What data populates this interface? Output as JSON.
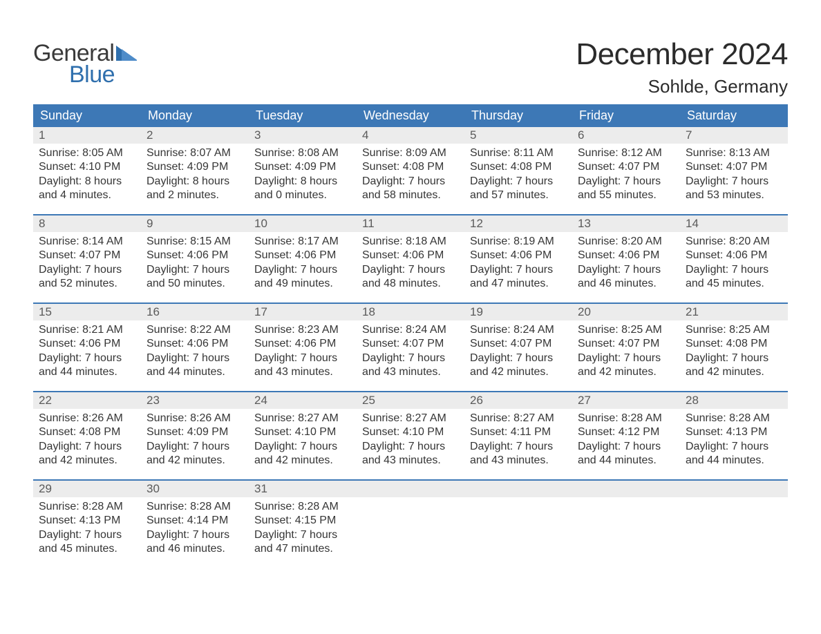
{
  "brand": {
    "word1": "General",
    "word2": "Blue",
    "text_color": "#3a3a3a",
    "accent_color": "#2f6fad"
  },
  "title": "December 2024",
  "location": "Sohlde, Germany",
  "colors": {
    "header_bg": "#3d78b6",
    "header_text": "#ffffff",
    "daynum_bg": "#ececec",
    "daynum_text": "#5a5a5a",
    "body_text": "#353535",
    "week_border": "#3d78b6",
    "page_bg": "#ffffff"
  },
  "typography": {
    "title_fontsize": 44,
    "location_fontsize": 26,
    "dow_fontsize": 18,
    "daynum_fontsize": 17,
    "body_fontsize": 16,
    "logo_fontsize": 34
  },
  "dow": [
    "Sunday",
    "Monday",
    "Tuesday",
    "Wednesday",
    "Thursday",
    "Friday",
    "Saturday"
  ],
  "weeks": [
    [
      {
        "n": "1",
        "sunrise": "8:05 AM",
        "sunset": "4:10 PM",
        "dl1": "Daylight: 8 hours",
        "dl2": "and 4 minutes."
      },
      {
        "n": "2",
        "sunrise": "8:07 AM",
        "sunset": "4:09 PM",
        "dl1": "Daylight: 8 hours",
        "dl2": "and 2 minutes."
      },
      {
        "n": "3",
        "sunrise": "8:08 AM",
        "sunset": "4:09 PM",
        "dl1": "Daylight: 8 hours",
        "dl2": "and 0 minutes."
      },
      {
        "n": "4",
        "sunrise": "8:09 AM",
        "sunset": "4:08 PM",
        "dl1": "Daylight: 7 hours",
        "dl2": "and 58 minutes."
      },
      {
        "n": "5",
        "sunrise": "8:11 AM",
        "sunset": "4:08 PM",
        "dl1": "Daylight: 7 hours",
        "dl2": "and 57 minutes."
      },
      {
        "n": "6",
        "sunrise": "8:12 AM",
        "sunset": "4:07 PM",
        "dl1": "Daylight: 7 hours",
        "dl2": "and 55 minutes."
      },
      {
        "n": "7",
        "sunrise": "8:13 AM",
        "sunset": "4:07 PM",
        "dl1": "Daylight: 7 hours",
        "dl2": "and 53 minutes."
      }
    ],
    [
      {
        "n": "8",
        "sunrise": "8:14 AM",
        "sunset": "4:07 PM",
        "dl1": "Daylight: 7 hours",
        "dl2": "and 52 minutes."
      },
      {
        "n": "9",
        "sunrise": "8:15 AM",
        "sunset": "4:06 PM",
        "dl1": "Daylight: 7 hours",
        "dl2": "and 50 minutes."
      },
      {
        "n": "10",
        "sunrise": "8:17 AM",
        "sunset": "4:06 PM",
        "dl1": "Daylight: 7 hours",
        "dl2": "and 49 minutes."
      },
      {
        "n": "11",
        "sunrise": "8:18 AM",
        "sunset": "4:06 PM",
        "dl1": "Daylight: 7 hours",
        "dl2": "and 48 minutes."
      },
      {
        "n": "12",
        "sunrise": "8:19 AM",
        "sunset": "4:06 PM",
        "dl1": "Daylight: 7 hours",
        "dl2": "and 47 minutes."
      },
      {
        "n": "13",
        "sunrise": "8:20 AM",
        "sunset": "4:06 PM",
        "dl1": "Daylight: 7 hours",
        "dl2": "and 46 minutes."
      },
      {
        "n": "14",
        "sunrise": "8:20 AM",
        "sunset": "4:06 PM",
        "dl1": "Daylight: 7 hours",
        "dl2": "and 45 minutes."
      }
    ],
    [
      {
        "n": "15",
        "sunrise": "8:21 AM",
        "sunset": "4:06 PM",
        "dl1": "Daylight: 7 hours",
        "dl2": "and 44 minutes."
      },
      {
        "n": "16",
        "sunrise": "8:22 AM",
        "sunset": "4:06 PM",
        "dl1": "Daylight: 7 hours",
        "dl2": "and 44 minutes."
      },
      {
        "n": "17",
        "sunrise": "8:23 AM",
        "sunset": "4:06 PM",
        "dl1": "Daylight: 7 hours",
        "dl2": "and 43 minutes."
      },
      {
        "n": "18",
        "sunrise": "8:24 AM",
        "sunset": "4:07 PM",
        "dl1": "Daylight: 7 hours",
        "dl2": "and 43 minutes."
      },
      {
        "n": "19",
        "sunrise": "8:24 AM",
        "sunset": "4:07 PM",
        "dl1": "Daylight: 7 hours",
        "dl2": "and 42 minutes."
      },
      {
        "n": "20",
        "sunrise": "8:25 AM",
        "sunset": "4:07 PM",
        "dl1": "Daylight: 7 hours",
        "dl2": "and 42 minutes."
      },
      {
        "n": "21",
        "sunrise": "8:25 AM",
        "sunset": "4:08 PM",
        "dl1": "Daylight: 7 hours",
        "dl2": "and 42 minutes."
      }
    ],
    [
      {
        "n": "22",
        "sunrise": "8:26 AM",
        "sunset": "4:08 PM",
        "dl1": "Daylight: 7 hours",
        "dl2": "and 42 minutes."
      },
      {
        "n": "23",
        "sunrise": "8:26 AM",
        "sunset": "4:09 PM",
        "dl1": "Daylight: 7 hours",
        "dl2": "and 42 minutes."
      },
      {
        "n": "24",
        "sunrise": "8:27 AM",
        "sunset": "4:10 PM",
        "dl1": "Daylight: 7 hours",
        "dl2": "and 42 minutes."
      },
      {
        "n": "25",
        "sunrise": "8:27 AM",
        "sunset": "4:10 PM",
        "dl1": "Daylight: 7 hours",
        "dl2": "and 43 minutes."
      },
      {
        "n": "26",
        "sunrise": "8:27 AM",
        "sunset": "4:11 PM",
        "dl1": "Daylight: 7 hours",
        "dl2": "and 43 minutes."
      },
      {
        "n": "27",
        "sunrise": "8:28 AM",
        "sunset": "4:12 PM",
        "dl1": "Daylight: 7 hours",
        "dl2": "and 44 minutes."
      },
      {
        "n": "28",
        "sunrise": "8:28 AM",
        "sunset": "4:13 PM",
        "dl1": "Daylight: 7 hours",
        "dl2": "and 44 minutes."
      }
    ],
    [
      {
        "n": "29",
        "sunrise": "8:28 AM",
        "sunset": "4:13 PM",
        "dl1": "Daylight: 7 hours",
        "dl2": "and 45 minutes."
      },
      {
        "n": "30",
        "sunrise": "8:28 AM",
        "sunset": "4:14 PM",
        "dl1": "Daylight: 7 hours",
        "dl2": "and 46 minutes."
      },
      {
        "n": "31",
        "sunrise": "8:28 AM",
        "sunset": "4:15 PM",
        "dl1": "Daylight: 7 hours",
        "dl2": "and 47 minutes."
      },
      {
        "empty": true
      },
      {
        "empty": true
      },
      {
        "empty": true
      },
      {
        "empty": true
      }
    ]
  ],
  "labels": {
    "sunrise_prefix": "Sunrise: ",
    "sunset_prefix": "Sunset: "
  }
}
